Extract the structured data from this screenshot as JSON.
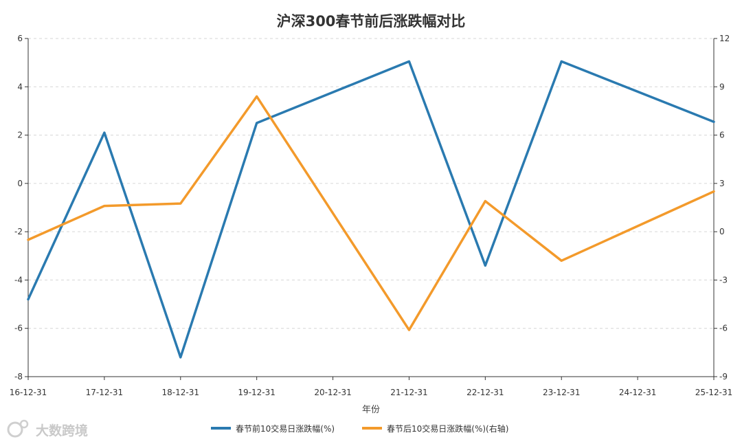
{
  "chart_data": {
    "type": "line",
    "title": "沪深300春节前后涨跌幅对比",
    "xlabel": "年份",
    "categories": [
      "16-12-31",
      "17-12-31",
      "18-12-31",
      "19-12-31",
      "20-12-31",
      "21-12-31",
      "22-12-31",
      "23-12-31",
      "24-12-31",
      "25-12-31"
    ],
    "x_values": [
      0,
      1,
      2,
      3,
      5,
      6,
      7,
      9
    ],
    "left_axis": {
      "ylim": [
        -8,
        6
      ],
      "ticks": [
        "6",
        "4",
        "2",
        "0",
        "-2",
        "-4",
        "-6",
        "-8"
      ]
    },
    "right_axis": {
      "ylim": [
        -9,
        12
      ],
      "ticks": [
        "12",
        "9",
        "6",
        "3",
        "0",
        "-3",
        "-6",
        "-9"
      ]
    },
    "series": [
      {
        "name": "春节前10交易日涨跌幅(%)",
        "axis": "left",
        "color": "#2a7ab0",
        "values": [
          -4.8,
          2.1,
          -7.2,
          2.5,
          5.05,
          -3.4,
          5.05,
          2.55
        ]
      },
      {
        "name": "春节后10交易日涨跌幅(%)(右轴)",
        "axis": "right",
        "color": "#f39a2b",
        "values": [
          -0.5,
          1.6,
          1.75,
          8.4,
          -6.1,
          1.9,
          -1.8,
          2.5
        ]
      }
    ],
    "grid": true,
    "legend_position": "bottom"
  },
  "watermark": {
    "text": "大数跨境",
    "icon": "weibo-logo-icon"
  }
}
